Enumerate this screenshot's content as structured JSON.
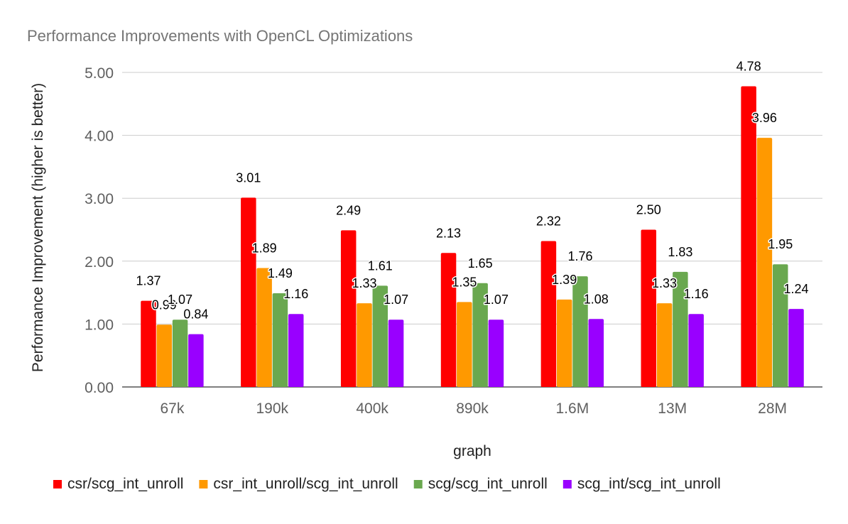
{
  "chart_data": {
    "type": "bar",
    "title": "Performance Improvements with OpenCL Optimizations",
    "xlabel": "graph",
    "ylabel": "Performance Improvement (higher is better)",
    "ylim": [
      0,
      5
    ],
    "yticks": [
      "0.00",
      "1.00",
      "2.00",
      "3.00",
      "4.00",
      "5.00"
    ],
    "grid": true,
    "legend_position": "bottom",
    "categories": [
      "67k",
      "190k",
      "400k",
      "890k",
      "1.6M",
      "13M",
      "28M"
    ],
    "series": [
      {
        "name": "csr/scg_int_unroll",
        "color": "#ff0000",
        "values": [
          1.37,
          3.01,
          2.49,
          2.13,
          2.32,
          2.5,
          4.78
        ],
        "labels": [
          "1.37",
          "3.01",
          "2.49",
          "2.13",
          "2.32",
          "2.50",
          "4.78"
        ]
      },
      {
        "name": "csr_int_unroll/scg_int_unroll",
        "color": "#ff9900",
        "values": [
          0.99,
          1.89,
          1.33,
          1.35,
          1.39,
          1.33,
          3.96
        ],
        "labels": [
          "0.99",
          "1.89",
          "1.33",
          "1.35",
          "1.39",
          "1.33",
          "3.96"
        ]
      },
      {
        "name": "scg/scg_int_unroll",
        "color": "#6aa84f",
        "values": [
          1.07,
          1.49,
          1.61,
          1.65,
          1.76,
          1.83,
          1.95
        ],
        "labels": [
          "1.07",
          "1.49",
          "1.61",
          "1.65",
          "1.76",
          "1.83",
          "1.95"
        ]
      },
      {
        "name": "scg_int/scg_int_unroll",
        "color": "#9900ff",
        "values": [
          0.84,
          1.16,
          1.07,
          1.07,
          1.08,
          1.16,
          1.24
        ],
        "labels": [
          "0.84",
          "1.16",
          "1.07",
          "1.07",
          "1.08",
          "1.16",
          "1.24"
        ]
      }
    ]
  }
}
